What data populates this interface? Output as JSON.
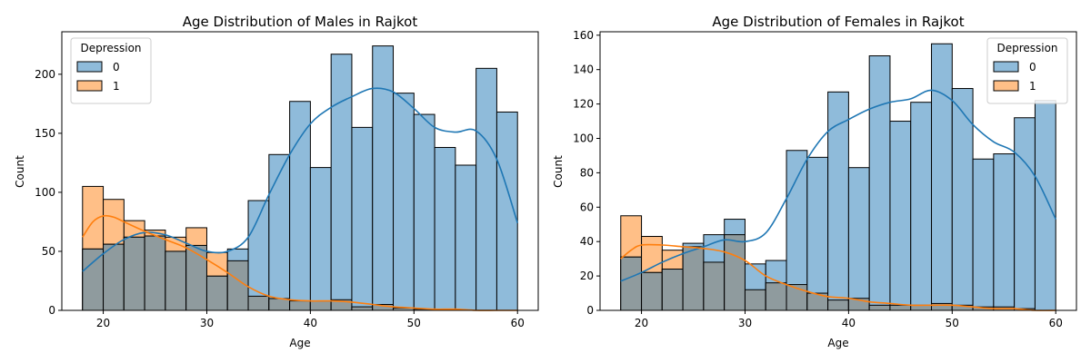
{
  "chart_data": [
    {
      "type": "histogram",
      "title": "Age Distribution of Males in Rajkot",
      "xlabel": "Age",
      "ylabel": "Count",
      "xlim": [
        16,
        62
      ],
      "ylim": [
        0,
        236
      ],
      "xticks": [
        20,
        30,
        40,
        50,
        60
      ],
      "yticks": [
        0,
        50,
        100,
        150,
        200
      ],
      "bin_edges": [
        18,
        20,
        22,
        24,
        26,
        28,
        30,
        32,
        34,
        36,
        38,
        40,
        42,
        44,
        46,
        48,
        50,
        52,
        54,
        56,
        58,
        60
      ],
      "legend": {
        "title": "Depression",
        "position": "upper-left",
        "labels": [
          "0",
          "1"
        ]
      },
      "series": [
        {
          "name": "0",
          "color": "#1f77b4",
          "values": [
            52,
            56,
            62,
            63,
            50,
            55,
            29,
            52,
            93,
            132,
            177,
            121,
            217,
            155,
            224,
            184,
            166,
            138,
            123,
            205,
            168
          ],
          "kde": [
            [
              18,
              33
            ],
            [
              20,
              48
            ],
            [
              22,
              60
            ],
            [
              24,
              66
            ],
            [
              26,
              64
            ],
            [
              28,
              57
            ],
            [
              30,
              50
            ],
            [
              32,
              50
            ],
            [
              34,
              62
            ],
            [
              36,
              98
            ],
            [
              38,
              132
            ],
            [
              40,
              158
            ],
            [
              42,
              172
            ],
            [
              44,
              181
            ],
            [
              46,
              188
            ],
            [
              48,
              185
            ],
            [
              50,
              171
            ],
            [
              52,
              155
            ],
            [
              54,
              151
            ],
            [
              56,
              152
            ],
            [
              58,
              128
            ],
            [
              60,
              74
            ]
          ]
        },
        {
          "name": "1",
          "color": "#ff7f0e",
          "values": [
            105,
            94,
            76,
            68,
            62,
            70,
            49,
            42,
            12,
            10,
            8,
            8,
            9,
            3,
            5,
            2,
            1,
            1,
            0,
            0,
            0
          ],
          "kde": [
            [
              18,
              62
            ],
            [
              19,
              75
            ],
            [
              20,
              80
            ],
            [
              21,
              79
            ],
            [
              22,
              75
            ],
            [
              24,
              67
            ],
            [
              26,
              60
            ],
            [
              28,
              53
            ],
            [
              30,
              43
            ],
            [
              32,
              32
            ],
            [
              34,
              20
            ],
            [
              36,
              12
            ],
            [
              38,
              9
            ],
            [
              40,
              8
            ],
            [
              42,
              8
            ],
            [
              44,
              7
            ],
            [
              46,
              5
            ],
            [
              48,
              3
            ],
            [
              50,
              2
            ],
            [
              52,
              1
            ],
            [
              54,
              1
            ],
            [
              56,
              0
            ],
            [
              58,
              0
            ],
            [
              60,
              0
            ]
          ]
        }
      ]
    },
    {
      "type": "histogram",
      "title": "Age Distribution of Females in Rajkot",
      "xlabel": "Age",
      "ylabel": "Count",
      "xlim": [
        16,
        62
      ],
      "ylim": [
        0,
        162
      ],
      "xticks": [
        20,
        30,
        40,
        50,
        60
      ],
      "yticks": [
        0,
        20,
        40,
        60,
        80,
        100,
        120,
        140,
        160
      ],
      "bin_edges": [
        18,
        20,
        22,
        24,
        26,
        28,
        30,
        32,
        34,
        36,
        38,
        40,
        42,
        44,
        46,
        48,
        50,
        52,
        54,
        56,
        58,
        60
      ],
      "legend": {
        "title": "Depression",
        "position": "upper-right",
        "labels": [
          "0",
          "1"
        ]
      },
      "series": [
        {
          "name": "0",
          "color": "#1f77b4",
          "values": [
            31,
            22,
            24,
            39,
            44,
            53,
            27,
            29,
            93,
            89,
            127,
            83,
            148,
            110,
            121,
            155,
            129,
            88,
            91,
            112,
            122
          ],
          "kde": [
            [
              18,
              17
            ],
            [
              20,
              22
            ],
            [
              22,
              28
            ],
            [
              24,
              33
            ],
            [
              26,
              37
            ],
            [
              28,
              41
            ],
            [
              30,
              40
            ],
            [
              32,
              45
            ],
            [
              34,
              65
            ],
            [
              36,
              88
            ],
            [
              38,
              104
            ],
            [
              40,
              111
            ],
            [
              42,
              117
            ],
            [
              44,
              121
            ],
            [
              46,
              123
            ],
            [
              48,
              128
            ],
            [
              50,
              122
            ],
            [
              52,
              108
            ],
            [
              54,
              98
            ],
            [
              56,
              92
            ],
            [
              58,
              78
            ],
            [
              60,
              53
            ]
          ]
        },
        {
          "name": "1",
          "color": "#ff7f0e",
          "values": [
            55,
            43,
            35,
            37,
            28,
            44,
            12,
            16,
            15,
            10,
            6,
            7,
            3,
            3,
            3,
            4,
            3,
            2,
            2,
            1,
            0
          ],
          "kde": [
            [
              18,
              30
            ],
            [
              19,
              35
            ],
            [
              20,
              38
            ],
            [
              22,
              38
            ],
            [
              24,
              37
            ],
            [
              26,
              36
            ],
            [
              28,
              34
            ],
            [
              30,
              29
            ],
            [
              32,
              20
            ],
            [
              34,
              15
            ],
            [
              36,
              11
            ],
            [
              38,
              8
            ],
            [
              40,
              7
            ],
            [
              42,
              5
            ],
            [
              44,
              4
            ],
            [
              46,
              3
            ],
            [
              48,
              3
            ],
            [
              50,
              3
            ],
            [
              52,
              2
            ],
            [
              54,
              1
            ],
            [
              56,
              1
            ],
            [
              58,
              0
            ],
            [
              60,
              0
            ]
          ]
        }
      ]
    }
  ]
}
